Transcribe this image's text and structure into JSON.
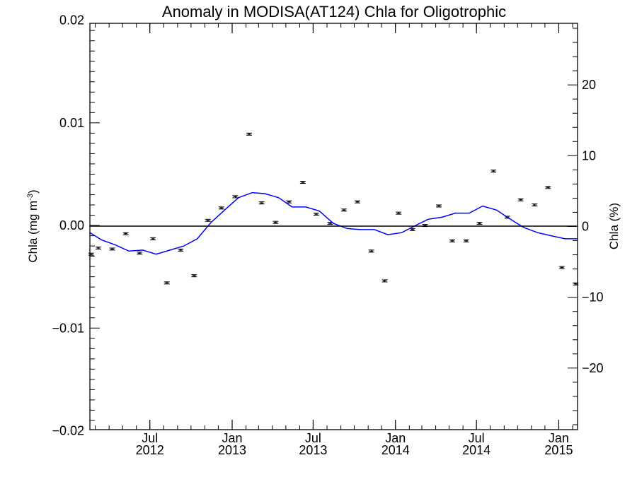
{
  "chart_data": {
    "type": "scatter",
    "title": "Anomaly in MODISA(AT124) Chla for Oligotrophic",
    "ylabel_left": "Chla (mg m",
    "ylabel_left_sup": "-3",
    "ylabel_left_close": ")",
    "ylabel_right": "Chla (%)",
    "xlim": [
      "2012-02-18",
      "2015-02-12"
    ],
    "ylim_left": [
      -0.0199,
      0.0197
    ],
    "ylim_right": [
      -28.7,
      28.7
    ],
    "x_ticks": [
      {
        "date": "2012-07-01",
        "month": "Jul",
        "year": "2012"
      },
      {
        "date": "2013-01-01",
        "month": "Jan",
        "year": "2013"
      },
      {
        "date": "2013-07-01",
        "month": "Jul",
        "year": "2013"
      },
      {
        "date": "2014-01-01",
        "month": "Jan",
        "year": "2014"
      },
      {
        "date": "2014-07-01",
        "month": "Jul",
        "year": "2014"
      },
      {
        "date": "2015-01-01",
        "month": "Jan",
        "year": "2015"
      }
    ],
    "y_left_ticks": [
      {
        "value": 0.02,
        "label": "0.02"
      },
      {
        "value": 0.01,
        "label": "0.01"
      },
      {
        "value": 0.0,
        "label": "0.00"
      },
      {
        "value": -0.01,
        "label": "−0.01"
      },
      {
        "value": -0.02,
        "label": "−0.02"
      }
    ],
    "y_right_ticks": [
      {
        "value": 20,
        "label": "20"
      },
      {
        "value": 10,
        "label": "10"
      },
      {
        "value": 0,
        "label": "0"
      },
      {
        "value": -10,
        "label": "−10"
      },
      {
        "value": -20,
        "label": "−20"
      }
    ],
    "zero_line": 0,
    "series": [
      {
        "kind": "points",
        "color": "#000000",
        "x": [
          "2012-02-21",
          "2012-03-08",
          "2012-04-08",
          "2012-05-08",
          "2012-06-08",
          "2012-07-08",
          "2012-08-08",
          "2012-09-08",
          "2012-10-08",
          "2012-11-08",
          "2012-12-08",
          "2013-01-08",
          "2013-02-08",
          "2013-03-08",
          "2013-04-08",
          "2013-05-08",
          "2013-06-08",
          "2013-07-08",
          "2013-08-08",
          "2013-09-08",
          "2013-10-08",
          "2013-11-08",
          "2013-12-08",
          "2014-01-08",
          "2014-02-08",
          "2014-03-08",
          "2014-04-08",
          "2014-05-08",
          "2014-06-08",
          "2014-07-08",
          "2014-08-08",
          "2014-09-08",
          "2014-10-08",
          "2014-11-08",
          "2014-12-08",
          "2015-01-08",
          "2015-02-08"
        ],
        "y": [
          -0.0028,
          -0.0022,
          -0.0023,
          -0.0008,
          -0.0027,
          -0.0013,
          -0.0056,
          -0.0024,
          -0.0049,
          0.0005,
          0.0017,
          0.0028,
          0.0089,
          0.0022,
          0.0003,
          0.0023,
          0.0042,
          0.0011,
          0.0002,
          0.0015,
          0.0023,
          -0.0025,
          -0.0054,
          0.0012,
          -0.0004,
          0.0,
          0.0019,
          -0.0015,
          -0.0015,
          0.0002,
          0.0053,
          0.0008,
          0.0025,
          0.002,
          0.0037,
          -0.0041,
          -0.0057
        ]
      },
      {
        "kind": "line",
        "color": "#0000ff",
        "x": [
          "2012-02-18",
          "2012-03-15",
          "2012-04-15",
          "2012-05-15",
          "2012-06-15",
          "2012-07-15",
          "2012-08-15",
          "2012-09-15",
          "2012-10-15",
          "2012-11-15",
          "2012-12-15",
          "2013-01-15",
          "2013-02-15",
          "2013-03-15",
          "2013-04-15",
          "2013-05-15",
          "2013-06-15",
          "2013-07-15",
          "2013-08-15",
          "2013-09-15",
          "2013-10-15",
          "2013-11-15",
          "2013-12-15",
          "2014-01-15",
          "2014-02-15",
          "2014-03-15",
          "2014-04-15",
          "2014-05-15",
          "2014-06-15",
          "2014-07-15",
          "2014-08-15",
          "2014-09-15",
          "2014-10-15",
          "2014-11-15",
          "2014-12-15",
          "2015-01-15",
          "2015-02-12"
        ],
        "y": [
          -0.0007,
          -0.0014,
          -0.0019,
          -0.0025,
          -0.0024,
          -0.0028,
          -0.0024,
          -0.002,
          -0.0013,
          0.0003,
          0.0015,
          0.0027,
          0.0032,
          0.0031,
          0.0027,
          0.0018,
          0.0018,
          0.0014,
          0.0002,
          -0.0003,
          -0.0004,
          -0.0004,
          -0.0009,
          -0.0007,
          0.0,
          0.0006,
          0.0008,
          0.0012,
          0.0012,
          0.0019,
          0.0015,
          0.0006,
          -0.0002,
          -0.0007,
          -0.001,
          -0.0013,
          -0.0013
        ]
      }
    ]
  }
}
